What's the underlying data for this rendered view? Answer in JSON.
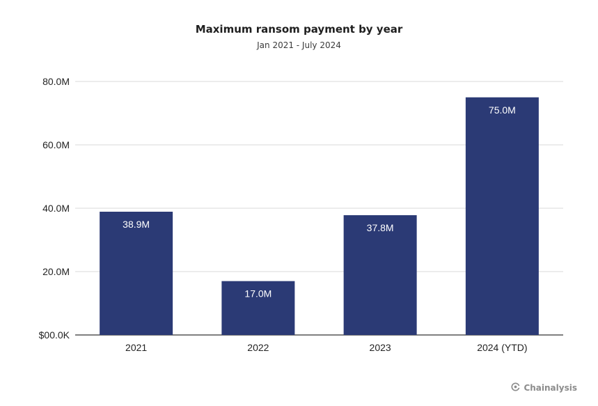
{
  "chart_data": {
    "type": "bar",
    "title": "Maximum ransom payment by year",
    "subtitle": "Jan 2021 - July 2024",
    "categories": [
      "2021",
      "2022",
      "2023",
      "2024 (YTD)"
    ],
    "values": [
      38.9,
      17.0,
      37.8,
      75.0
    ],
    "data_labels": [
      "38.9M",
      "17.0M",
      "37.8M",
      "75.0M"
    ],
    "y_unit": "M",
    "ylim": [
      0,
      80
    ],
    "y_ticks": [
      0,
      20,
      40,
      60,
      80
    ],
    "y_tick_labels": [
      "$00.0K",
      "20.0M",
      "40.0M",
      "60.0M",
      "80.0M"
    ],
    "xlabel": "",
    "ylabel": "",
    "grid": true,
    "legend": "none",
    "bar_color": "#2b3a75",
    "data_label_color": "#ffffff",
    "gridline_color": "#d9d9d9"
  },
  "brand": {
    "name": "Chainalysis",
    "icon": "chainalysis-logo-icon"
  }
}
